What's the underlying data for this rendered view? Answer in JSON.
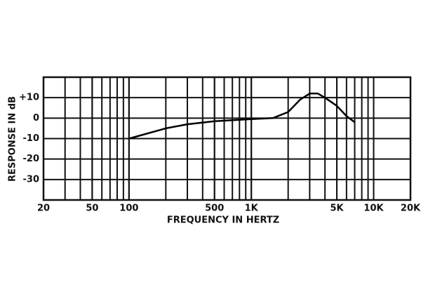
{
  "chart_data": {
    "type": "line",
    "xscale": "log",
    "grid": true,
    "x_label": "FREQUENCY IN HERTZ",
    "y_label": "RESPONSE IN dB",
    "xlim": [
      20,
      20000
    ],
    "ylim": [
      -40,
      20
    ],
    "xticks": [
      20,
      50,
      100,
      500,
      {
        "value": 1000,
        "label": "1K"
      },
      {
        "value": 5000,
        "label": "5K"
      },
      {
        "value": 10000,
        "label": "10K"
      },
      {
        "value": 20000,
        "label": "20K"
      }
    ],
    "yticks": [
      {
        "value": 10,
        "label": "+10"
      },
      0,
      -10,
      -20,
      -30
    ],
    "color": "#000000",
    "x": [
      100,
      200,
      300,
      500,
      1000,
      1500,
      2000,
      2500,
      3000,
      3500,
      4000,
      5000,
      6000,
      7000
    ],
    "values": [
      -10,
      -5,
      -3,
      -1.5,
      -0.5,
      0,
      3,
      9,
      12,
      12,
      10,
      6,
      1,
      -2
    ]
  }
}
